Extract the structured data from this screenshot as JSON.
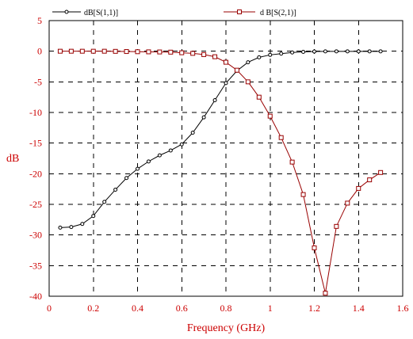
{
  "chart_data": {
    "type": "line",
    "xlabel": "Frequency (GHz)",
    "ylabel": "dB",
    "xlim": [
      0,
      1.6
    ],
    "ylim": [
      -40,
      5
    ],
    "xticks": [
      "0",
      "0.2",
      "0.4",
      "0.6",
      "0.8",
      "1",
      "1.2",
      "1.4",
      "1.6"
    ],
    "yticks": [
      "5",
      "0",
      "-5",
      "-10",
      "-15",
      "-20",
      "-25",
      "-30",
      "-35",
      "-40"
    ],
    "grid": true,
    "legend_position": "top",
    "series": [
      {
        "name": "dB[S(1,1)]",
        "color": "#000000",
        "marker": "circle",
        "x": [
          0.05,
          0.1,
          0.15,
          0.2,
          0.25,
          0.3,
          0.35,
          0.4,
          0.45,
          0.5,
          0.55,
          0.6,
          0.65,
          0.7,
          0.75,
          0.8,
          0.85,
          0.9,
          0.95,
          1.0,
          1.05,
          1.1,
          1.15,
          1.2,
          1.25,
          1.3,
          1.35,
          1.4,
          1.45,
          1.5
        ],
        "y": [
          -28.8,
          -28.7,
          -28.2,
          -26.9,
          -24.6,
          -22.6,
          -20.7,
          -19.2,
          -18.0,
          -17.0,
          -16.2,
          -15.2,
          -13.3,
          -10.8,
          -8.0,
          -5.2,
          -3.2,
          -1.8,
          -1.0,
          -0.6,
          -0.4,
          -0.2,
          -0.1,
          -0.05,
          -0.03,
          -0.02,
          -0.02,
          -0.02,
          -0.02,
          -0.02
        ]
      },
      {
        "name": "d B[S(2,1)]",
        "color": "#990000",
        "marker": "square",
        "x": [
          0.05,
          0.1,
          0.15,
          0.2,
          0.25,
          0.3,
          0.35,
          0.4,
          0.45,
          0.5,
          0.55,
          0.6,
          0.65,
          0.7,
          0.75,
          0.8,
          0.85,
          0.9,
          0.95,
          1.0,
          1.05,
          1.1,
          1.15,
          1.2,
          1.25,
          1.3,
          1.35,
          1.4,
          1.45,
          1.5
        ],
        "y": [
          0.0,
          0.0,
          0.0,
          0.0,
          0.0,
          -0.02,
          -0.05,
          -0.08,
          -0.1,
          -0.12,
          -0.15,
          -0.25,
          -0.35,
          -0.55,
          -0.9,
          -1.8,
          -3.1,
          -5.0,
          -7.5,
          -10.6,
          -14.1,
          -18.1,
          -23.4,
          -32.1,
          -39.5,
          -28.6,
          -24.8,
          -22.4,
          -21.0,
          -19.8
        ]
      }
    ]
  }
}
